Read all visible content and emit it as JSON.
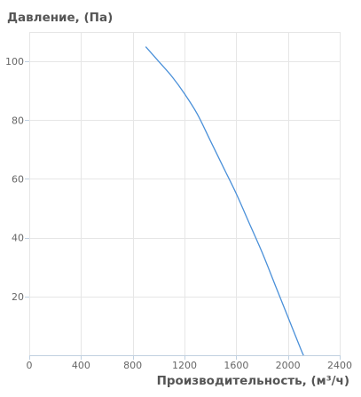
{
  "chart_data": {
    "type": "line",
    "ylabel": "Давление, (Па)",
    "xlabel": "Производительность, (м³/ч)",
    "xlim": [
      0,
      2400
    ],
    "ylim": [
      0,
      110
    ],
    "x_ticks": [
      0,
      400,
      800,
      1200,
      1600,
      2000,
      2400
    ],
    "y_ticks": [
      20,
      40,
      60,
      80,
      100
    ],
    "grid": true,
    "series": [
      {
        "color": "#4a90d9",
        "points": [
          [
            900,
            105
          ],
          [
            1000,
            100
          ],
          [
            1100,
            95
          ],
          [
            1200,
            89
          ],
          [
            1300,
            82
          ],
          [
            1400,
            73
          ],
          [
            1500,
            64
          ],
          [
            1600,
            55
          ],
          [
            1700,
            45
          ],
          [
            1800,
            35
          ],
          [
            1900,
            24
          ],
          [
            2000,
            13
          ],
          [
            2100,
            2
          ],
          [
            2120,
            0
          ]
        ]
      }
    ]
  }
}
